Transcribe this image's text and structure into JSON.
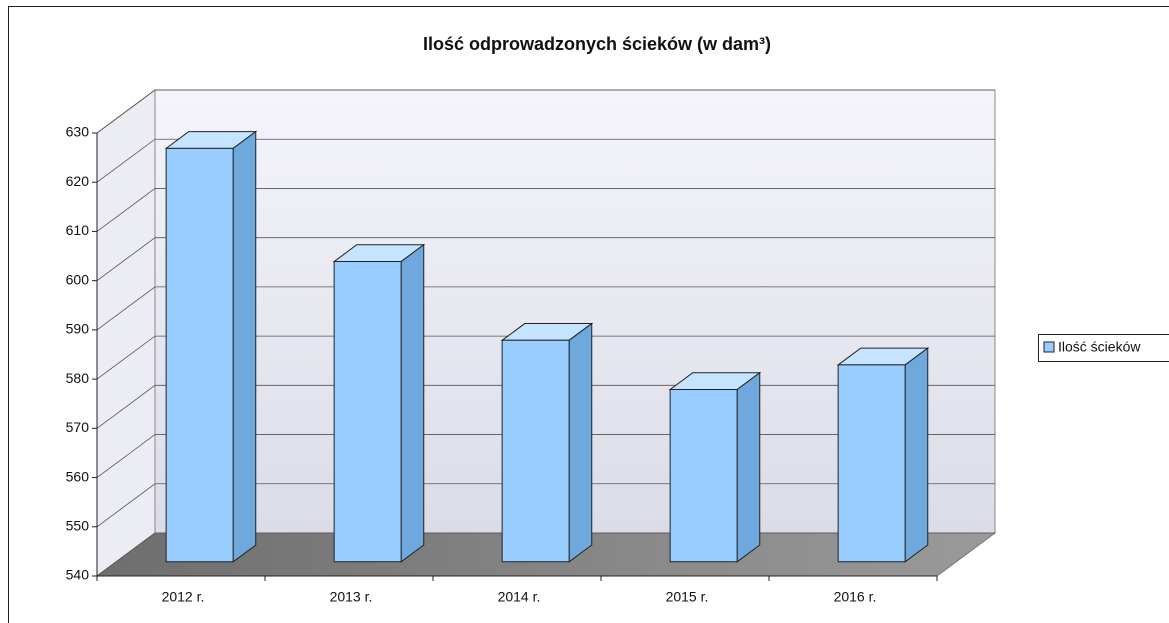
{
  "chart_data": {
    "type": "bar3d",
    "title": "Ilość odprowadzonych ścieków (w dam³)",
    "categories": [
      "2012 r.",
      "2013 r.",
      "2014 r.",
      "2015 r.",
      "2016 r."
    ],
    "series": [
      {
        "name": "Ilość ścieków",
        "color": "#99ccff",
        "values": [
          624,
          601,
          585,
          575,
          580
        ]
      }
    ],
    "ylim": [
      540,
      630
    ],
    "yticks": [
      540,
      550,
      560,
      570,
      580,
      590,
      600,
      610,
      620,
      630
    ],
    "grid": true,
    "legend": "right"
  }
}
